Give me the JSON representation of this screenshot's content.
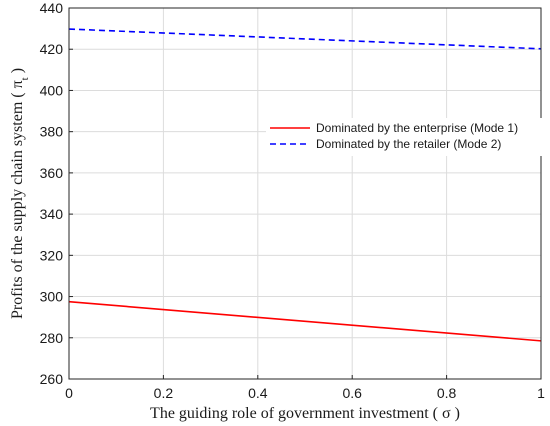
{
  "chart_data": {
    "type": "line",
    "title": "",
    "xlabel": "The guiding role of government investment ( σ )",
    "ylabel": "Profits of the supply chain system ( π_t )",
    "ylabel_main": "Profits of the supply chain system ( π",
    "ylabel_sub": "t",
    "ylabel_tail": " )",
    "xlim": [
      0,
      1
    ],
    "ylim": [
      260,
      440
    ],
    "x_ticks": [
      "0",
      "0.2",
      "0.4",
      "0.6",
      "0.8",
      "1"
    ],
    "y_ticks": [
      "260",
      "280",
      "300",
      "320",
      "340",
      "360",
      "380",
      "400",
      "420",
      "440"
    ],
    "grid": true,
    "legend_position": "right",
    "series": [
      {
        "name": "Dominated by the enterprise (Mode 1)",
        "color": "#ff0000",
        "dash": "solid",
        "x": [
          0,
          1
        ],
        "values": [
          297.5,
          278.5
        ]
      },
      {
        "name": "Dominated by the retailer (Mode 2)",
        "color": "#0000ff",
        "dash": "dashed",
        "x": [
          0,
          1
        ],
        "values": [
          429.8,
          420.2
        ]
      }
    ]
  }
}
